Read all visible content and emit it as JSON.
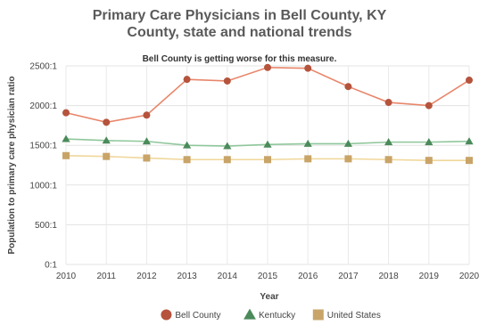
{
  "chart_data": {
    "type": "line",
    "title_line1": "Primary Care Physicians in Bell County, KY",
    "title_line2": "County, state and national trends",
    "subtitle": "Bell County is getting worse for this measure.",
    "xlabel": "Year",
    "ylabel": "Population to primary care physician ratio",
    "x": [
      "2010",
      "2011",
      "2012",
      "2013",
      "2014",
      "2015",
      "2016",
      "2017",
      "2018",
      "2019",
      "2020"
    ],
    "ylim": [
      0,
      2500
    ],
    "yticks": [
      {
        "value": 0,
        "label": "0:1"
      },
      {
        "value": 500,
        "label": "500:1"
      },
      {
        "value": 1000,
        "label": "1000:1"
      },
      {
        "value": 1500,
        "label": "1500:1"
      },
      {
        "value": 2000,
        "label": "2000:1"
      },
      {
        "value": 2500,
        "label": "2500:1"
      }
    ],
    "grid": true,
    "legend_position": "bottom",
    "series": [
      {
        "name": "Bell County",
        "marker": "circle",
        "line_color": "#e8866a",
        "marker_color": "#b5533c",
        "values": [
          1910,
          1790,
          1880,
          2330,
          2310,
          2480,
          2470,
          2240,
          2040,
          2000,
          2320
        ]
      },
      {
        "name": "Kentucky",
        "marker": "triangle",
        "line_color": "#8fc79b",
        "marker_color": "#4b8a5a",
        "values": [
          1580,
          1560,
          1550,
          1500,
          1490,
          1510,
          1520,
          1520,
          1540,
          1540,
          1550
        ]
      },
      {
        "name": "United States",
        "marker": "square",
        "line_color": "#f0d79a",
        "marker_color": "#c9a468",
        "values": [
          1370,
          1360,
          1340,
          1320,
          1320,
          1320,
          1330,
          1330,
          1320,
          1310,
          1310
        ]
      }
    ]
  }
}
